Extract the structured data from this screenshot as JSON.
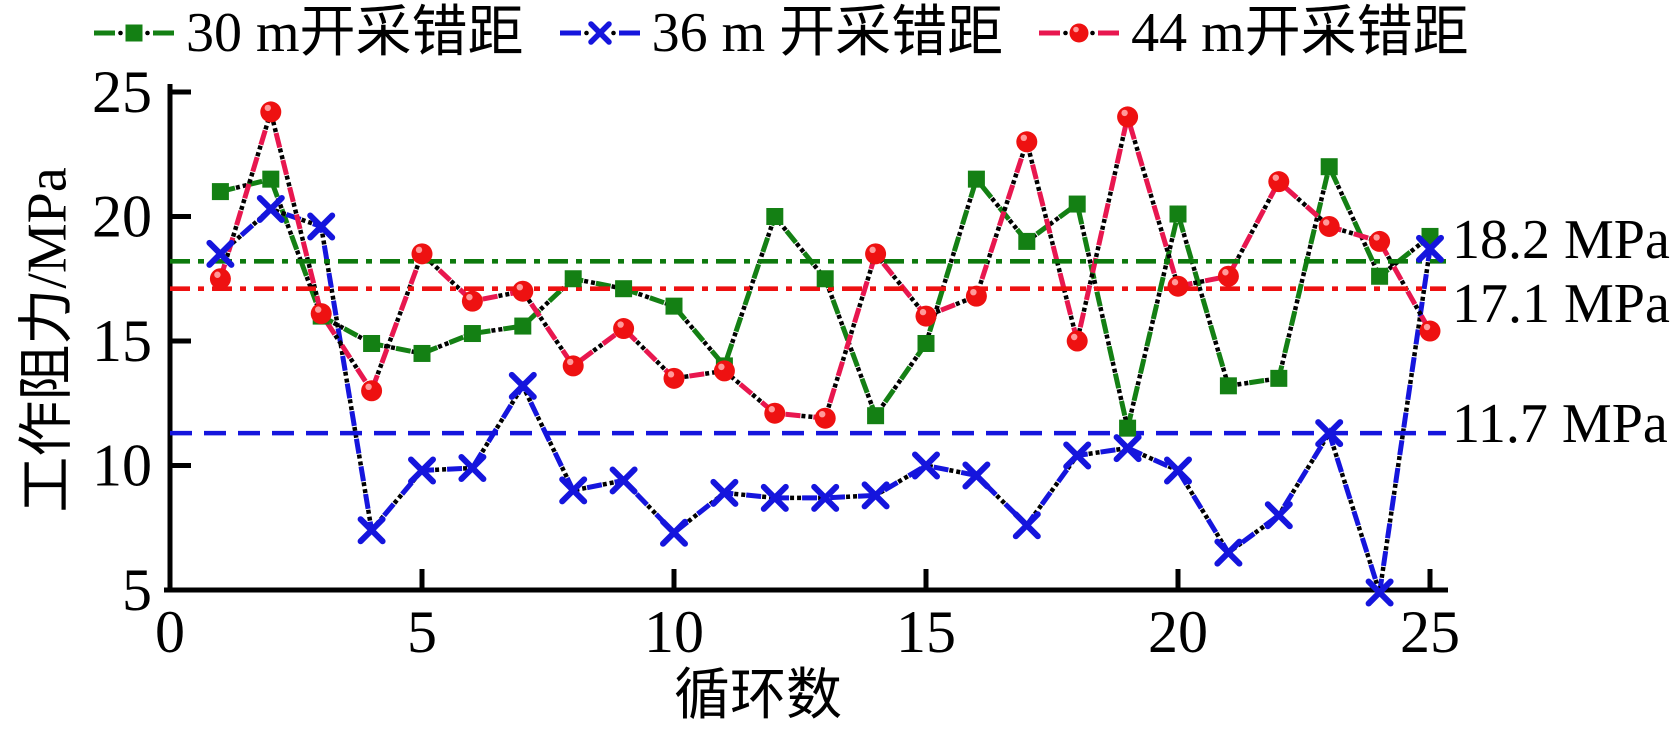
{
  "chart_data": {
    "type": "line",
    "xlabel": "循环数",
    "ylabel": "工作阻力/MPa",
    "x_ticks": [
      0,
      5,
      10,
      15,
      20,
      25
    ],
    "y_ticks": [
      5,
      10,
      15,
      20,
      25
    ],
    "xlim": [
      0,
      25.6
    ],
    "ylim": [
      5,
      25
    ],
    "x": [
      1,
      2,
      3,
      4,
      5,
      6,
      7,
      8,
      9,
      10,
      11,
      12,
      13,
      14,
      15,
      16,
      17,
      18,
      19,
      20,
      21,
      22,
      23,
      24,
      25
    ],
    "series": [
      {
        "name": "30 m开采错距",
        "marker": "square",
        "color": "#148014",
        "line_color": "#148014",
        "values": [
          21.0,
          21.5,
          16.0,
          14.9,
          14.5,
          15.3,
          15.6,
          17.5,
          17.1,
          16.4,
          14.0,
          20.0,
          17.5,
          12.0,
          14.9,
          21.5,
          19.0,
          20.5,
          11.5,
          20.1,
          13.2,
          13.5,
          22.0,
          17.6,
          19.2
        ]
      },
      {
        "name": "36 m 开采错距",
        "marker": "x",
        "color": "#1515dd",
        "line_color": "#1515dd",
        "values": [
          18.5,
          20.3,
          19.6,
          7.4,
          9.8,
          9.9,
          13.2,
          9.0,
          9.4,
          7.3,
          8.9,
          8.7,
          8.7,
          8.8,
          10.0,
          9.6,
          7.6,
          10.4,
          10.7,
          9.8,
          6.5,
          8.0,
          11.3,
          4.9,
          18.7
        ]
      },
      {
        "name": "44 m开采错距",
        "marker": "circle",
        "color": "#ee1111",
        "line_color": "#e8174f",
        "values": [
          17.5,
          24.2,
          16.1,
          13.0,
          18.5,
          16.6,
          17.0,
          14.0,
          15.5,
          13.5,
          13.8,
          12.1,
          11.9,
          18.5,
          16.0,
          16.8,
          23.0,
          15.0,
          24.0,
          17.2,
          17.6,
          21.4,
          19.6,
          19.0,
          15.4
        ]
      }
    ],
    "reference_lines": [
      {
        "label": "18.2 MPa",
        "value": 18.2,
        "draw_at": 18.2,
        "color": "#0d7a0d",
        "dash": "20 8 6 8"
      },
      {
        "label": "17.1 MPa",
        "value": 17.1,
        "draw_at": 17.1,
        "color": "#ee1111",
        "dash": "20 8 6 8"
      },
      {
        "label": "11.7 MPa",
        "value": 11.7,
        "draw_at": 11.3,
        "color": "#1515dd",
        "dash": "22 12"
      }
    ],
    "legend_position": "top",
    "grid": false
  }
}
